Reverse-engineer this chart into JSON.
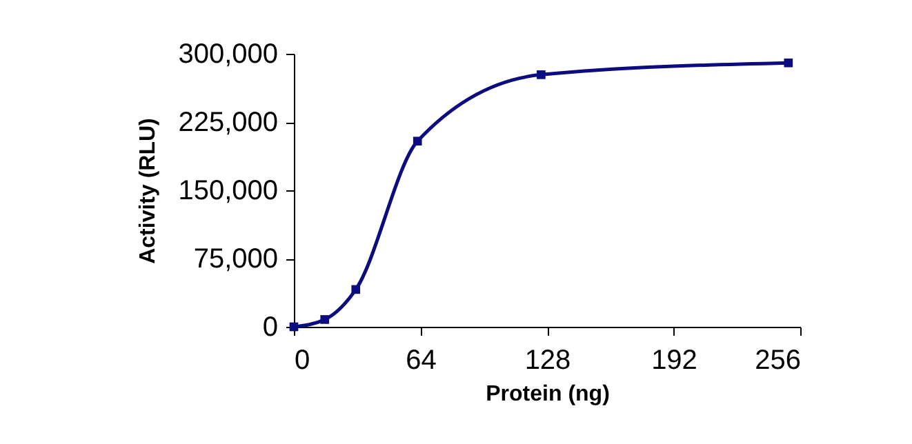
{
  "chart_data": {
    "type": "line",
    "xlabel": "Protein (ng)",
    "ylabel": "Activity (RLU)",
    "x": [
      0,
      15.6,
      31.3,
      62.5,
      125,
      250
    ],
    "series": [
      {
        "color": "#0c0c80",
        "values": [
          0,
          8000,
          41000,
          204000,
          277000,
          290000
        ]
      }
    ],
    "xlim": [
      0,
      256
    ],
    "xticks": [
      0,
      64,
      128,
      192,
      256
    ],
    "ylim": [
      0,
      300000
    ],
    "yticks": [
      0,
      {
        "value": 75000,
        "label": "75,000"
      },
      {
        "value": 150000,
        "label": "150,000"
      },
      {
        "value": 225000,
        "label": "225,000"
      },
      {
        "value": 300000,
        "label": "300,000"
      }
    ],
    "marker": "square",
    "line_style": "solid",
    "grid": false
  }
}
